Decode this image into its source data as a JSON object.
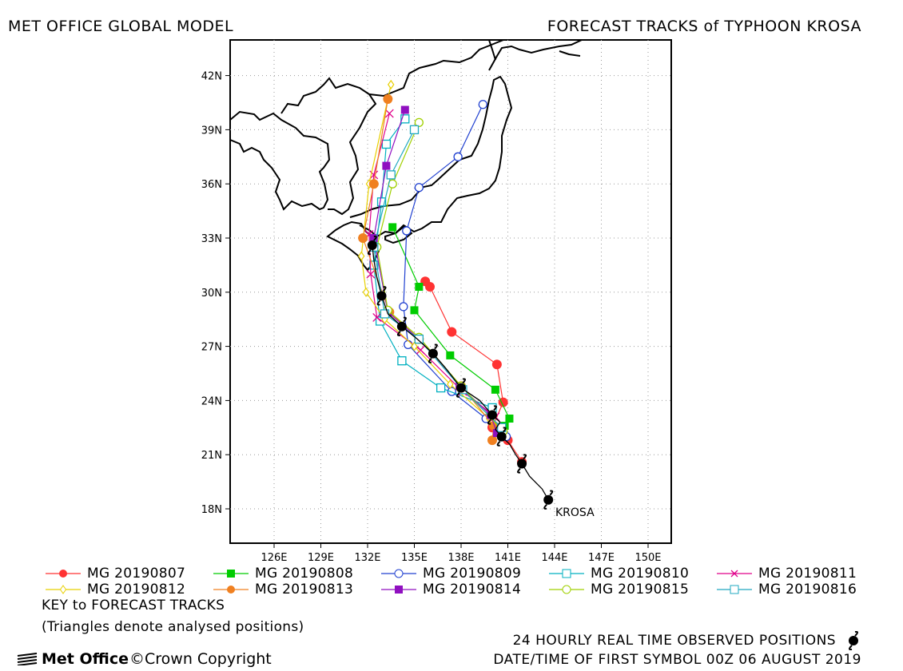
{
  "header": {
    "left_title": "MET OFFICE GLOBAL MODEL",
    "right_title": "FORECAST TRACKS of TYPHOON KROSA"
  },
  "map": {
    "lat_labels": [
      "42N",
      "39N",
      "36N",
      "33N",
      "30N",
      "27N",
      "24N",
      "21N",
      "18N"
    ],
    "lon_labels": [
      "126E",
      "129E",
      "132E",
      "135E",
      "138E",
      "141E",
      "144E",
      "147E",
      "150E"
    ],
    "storm_label": "KROSA",
    "coastline_color": "#000000",
    "grid_style": "dotted"
  },
  "legend": {
    "items": [
      {
        "label": "MG 20190807",
        "color": "#ff3333",
        "marker": "filled-circle"
      },
      {
        "label": "MG 20190808",
        "color": "#00cc00",
        "marker": "filled-square"
      },
      {
        "label": "MG 20190809",
        "color": "#2040d0",
        "marker": "open-circle"
      },
      {
        "label": "MG 20190810",
        "color": "#00b0c0",
        "marker": "open-square"
      },
      {
        "label": "MG 20190811",
        "color": "#e0008a",
        "marker": "x"
      },
      {
        "label": "MG 20190812",
        "color": "#e8d000",
        "marker": "open-diamond"
      },
      {
        "label": "MG 20190813",
        "color": "#f08020",
        "marker": "filled-circle"
      },
      {
        "label": "MG 20190814",
        "color": "#9010c0",
        "marker": "filled-square"
      },
      {
        "label": "MG 20190815",
        "color": "#a0d000",
        "marker": "open-circle"
      },
      {
        "label": "MG 20190816",
        "color": "#20a8c0",
        "marker": "open-square"
      }
    ],
    "key_title": "KEY to FORECAST TRACKS",
    "key_note": "(Triangles denote analysed positions)"
  },
  "tracks": {
    "observed": [
      [
        143.6,
        18.5
      ],
      [
        143.2,
        19.1
      ],
      [
        142.4,
        19.8
      ],
      [
        141.9,
        20.5
      ],
      [
        141.5,
        21.0
      ],
      [
        141.1,
        21.6
      ],
      [
        140.6,
        22.0
      ],
      [
        140.2,
        22.4
      ],
      [
        140.5,
        22.8
      ],
      [
        140.0,
        23.2
      ],
      [
        139.2,
        24.0
      ],
      [
        138.0,
        24.7
      ],
      [
        137.0,
        25.8
      ],
      [
        136.2,
        26.6
      ],
      [
        135.2,
        27.4
      ],
      [
        134.2,
        28.1
      ],
      [
        133.3,
        28.8
      ],
      [
        132.9,
        29.8
      ],
      [
        132.6,
        30.8
      ],
      [
        132.4,
        31.8
      ],
      [
        132.3,
        32.6
      ]
    ],
    "forecasts": [
      {
        "color": "#ff3333",
        "marker": "filled-circle",
        "points": [
          [
            141.9,
            20.6
          ],
          [
            141.0,
            21.8
          ],
          [
            140.0,
            22.5
          ],
          [
            140.7,
            23.9
          ],
          [
            140.3,
            26.0
          ],
          [
            137.4,
            27.8
          ],
          [
            136.0,
            30.3
          ],
          [
            135.7,
            30.6
          ]
        ]
      },
      {
        "color": "#00cc00",
        "marker": "filled-square",
        "points": [
          [
            140.8,
            22.6
          ],
          [
            141.1,
            23.0
          ],
          [
            140.2,
            24.6
          ],
          [
            137.3,
            26.5
          ],
          [
            135.0,
            29.0
          ],
          [
            135.3,
            30.3
          ],
          [
            133.6,
            33.6
          ]
        ]
      },
      {
        "color": "#2040d0",
        "marker": "open-circle",
        "points": [
          [
            140.9,
            22.0
          ],
          [
            139.6,
            23.0
          ],
          [
            137.4,
            24.5
          ],
          [
            134.6,
            27.1
          ],
          [
            134.3,
            29.2
          ],
          [
            134.5,
            33.4
          ],
          [
            135.3,
            35.8
          ],
          [
            137.8,
            37.5
          ],
          [
            139.4,
            40.4
          ]
        ]
      },
      {
        "color": "#00b0c0",
        "marker": "open-square",
        "points": [
          [
            140.0,
            23.6
          ],
          [
            136.7,
            24.7
          ],
          [
            134.2,
            26.2
          ],
          [
            132.8,
            28.4
          ],
          [
            132.4,
            31.5
          ],
          [
            132.9,
            35.0
          ],
          [
            133.2,
            38.2
          ],
          [
            134.4,
            39.6
          ]
        ]
      },
      {
        "color": "#e0008a",
        "marker": "x",
        "points": [
          [
            140.2,
            23.1
          ],
          [
            138.1,
            24.5
          ],
          [
            135.4,
            26.8
          ],
          [
            132.6,
            28.6
          ],
          [
            132.2,
            31.0
          ],
          [
            132.1,
            33.2
          ],
          [
            132.4,
            36.5
          ],
          [
            133.4,
            39.9
          ]
        ]
      },
      {
        "color": "#e8d000",
        "marker": "open-diamond",
        "points": [
          [
            139.8,
            23.0
          ],
          [
            137.3,
            24.9
          ],
          [
            135.0,
            27.0
          ],
          [
            133.1,
            28.5
          ],
          [
            131.9,
            30.0
          ],
          [
            131.6,
            32.0
          ],
          [
            132.1,
            36.0
          ],
          [
            133.5,
            41.5
          ]
        ]
      },
      {
        "color": "#f08020",
        "marker": "filled-circle",
        "points": [
          [
            140.0,
            21.8
          ],
          [
            140.1,
            22.6
          ],
          [
            138.0,
            24.8
          ],
          [
            135.3,
            27.4
          ],
          [
            133.4,
            28.9
          ],
          [
            131.7,
            33.0
          ],
          [
            132.4,
            36.0
          ],
          [
            133.3,
            40.7
          ]
        ]
      },
      {
        "color": "#9010c0",
        "marker": "filled-square",
        "points": [
          [
            140.3,
            22.2
          ],
          [
            139.9,
            23.2
          ],
          [
            137.9,
            24.8
          ],
          [
            135.3,
            27.4
          ],
          [
            133.3,
            28.9
          ],
          [
            132.4,
            33.0
          ],
          [
            133.2,
            37.0
          ],
          [
            134.4,
            40.1
          ]
        ]
      },
      {
        "color": "#a0d000",
        "marker": "open-circle",
        "points": [
          [
            140.7,
            22.3
          ],
          [
            138.0,
            24.8
          ],
          [
            135.3,
            27.5
          ],
          [
            133.3,
            29.0
          ],
          [
            132.6,
            32.5
          ],
          [
            133.6,
            36.0
          ],
          [
            135.3,
            39.4
          ]
        ]
      },
      {
        "color": "#20a8c0",
        "marker": "open-square",
        "points": [
          [
            140.6,
            22.5
          ],
          [
            138.1,
            24.6
          ],
          [
            135.3,
            27.4
          ],
          [
            133.1,
            28.8
          ],
          [
            132.4,
            32.5
          ],
          [
            133.5,
            36.5
          ],
          [
            135.0,
            39.0
          ]
        ]
      }
    ]
  },
  "footer": {
    "logo_text": "Met Office",
    "copyright": "©Crown Copyright",
    "observed_note": "24 HOURLY REAL TIME OBSERVED POSITIONS",
    "first_symbol": "DATE/TIME OF FIRST SYMBOL 00Z 06 AUGUST 2019"
  }
}
